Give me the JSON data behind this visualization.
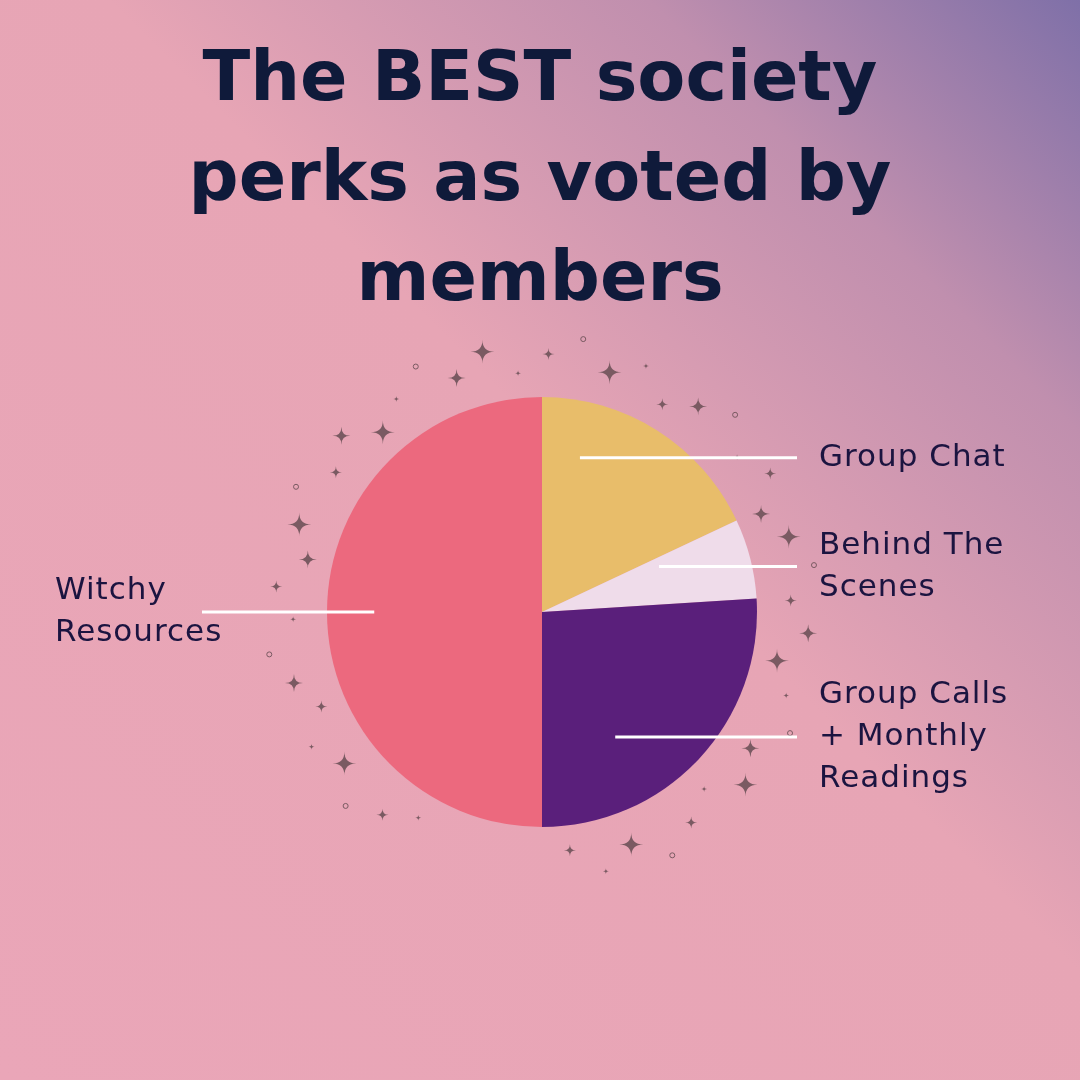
{
  "chart_data": {
    "type": "pie",
    "title": "The BEST society perks as voted by members",
    "categories": [
      "Group Chat",
      "Behind The Scenes",
      "Group Calls + Monthly Readings",
      "Witchy Resources"
    ],
    "values": [
      18,
      6,
      26,
      50
    ],
    "colors": [
      "#e8bd6a",
      "#efdcea",
      "#5a1f7b",
      "#ec697e"
    ]
  }
}
